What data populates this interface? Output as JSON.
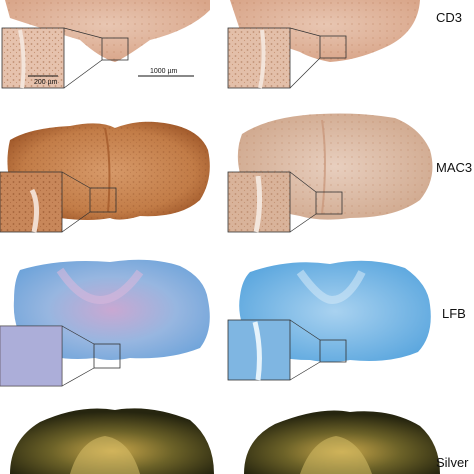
{
  "labels": {
    "cd3": "CD3",
    "mac3": "MAC3",
    "lfb": "LFB",
    "silver": "Silver"
  },
  "scale_bars": {
    "inset": "200 µm",
    "main": "1000 µm"
  },
  "colors": {
    "background": "#ffffff",
    "cd3_tissue": "#e3b8a0",
    "mac3_tissue_dark": "#b96a3a",
    "mac3_tissue_light": "#dcb8a0",
    "lfb_blue": "#7fb0de",
    "lfb_pink": "#c9a7c9",
    "silver_dark": "#2b2a14",
    "silver_gold": "#c9a94a"
  }
}
